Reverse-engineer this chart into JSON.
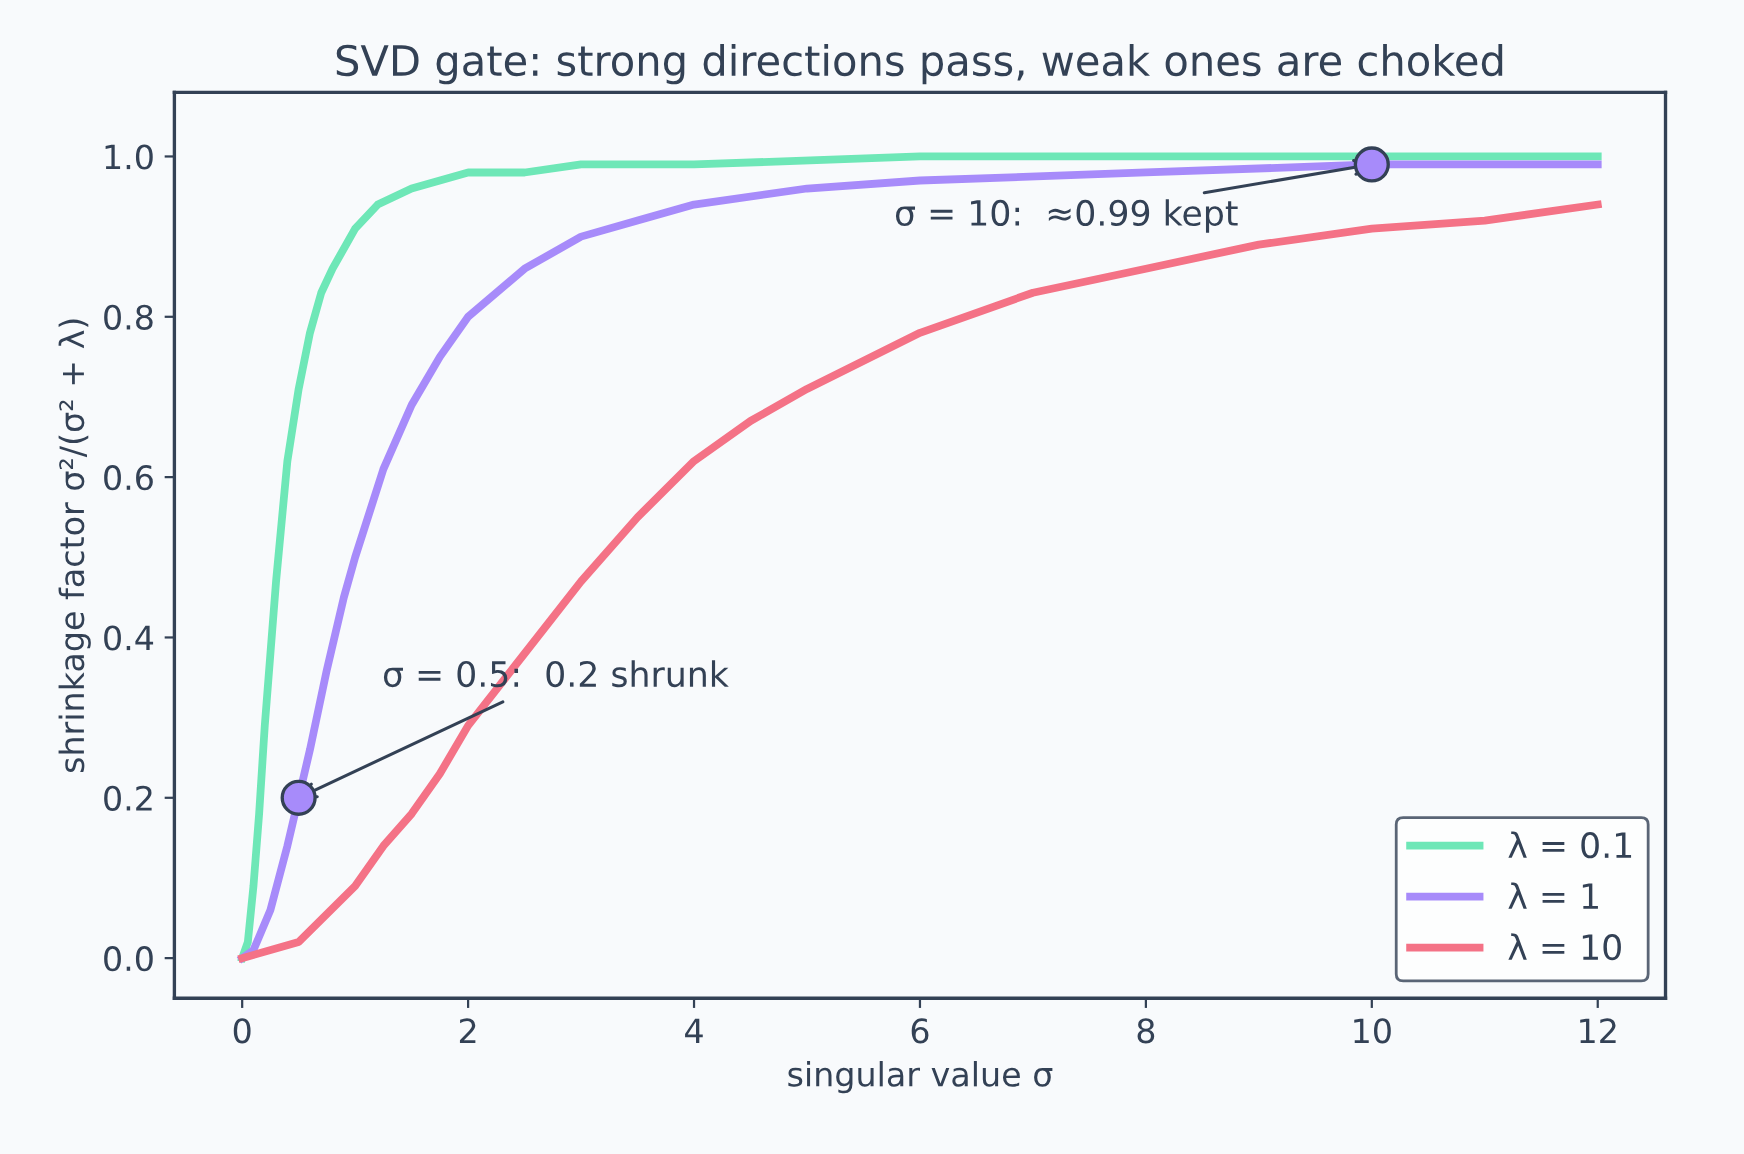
{
  "chart_data": {
    "type": "line",
    "title": "SVD gate: strong directions pass, weak ones are choked",
    "xlabel": "singular value σ",
    "ylabel": "shrinkage factor σ²/(σ² + λ)",
    "xlim": [
      -0.6,
      12.6
    ],
    "ylim": [
      -0.05,
      1.08
    ],
    "xticks": [
      0,
      2,
      4,
      6,
      8,
      10,
      12
    ],
    "yticks": [
      {
        "value": 0,
        "label": "0.0"
      },
      {
        "value": 0.2,
        "label": "0.2"
      },
      {
        "value": 0.4,
        "label": "0.4"
      },
      {
        "value": 0.6,
        "label": "0.6"
      },
      {
        "value": 0.8,
        "label": "0.8"
      },
      {
        "value": 1.0,
        "label": "1.0"
      }
    ],
    "grid": false,
    "legend": "bottom right",
    "marker": "none",
    "line_style": "solid",
    "series": [
      {
        "name": "λ = 0.1",
        "color": "#6ee7b7",
        "x": [
          0,
          0.05,
          0.1,
          0.15,
          0.2,
          0.25,
          0.3,
          0.4,
          0.5,
          0.6,
          0.7,
          0.8,
          1,
          1.2,
          1.5,
          2,
          2.5,
          3,
          4,
          6,
          8,
          12
        ],
        "values": [
          0,
          0.02,
          0.09,
          0.18,
          0.29,
          0.38,
          0.47,
          0.62,
          0.71,
          0.78,
          0.83,
          0.86,
          0.91,
          0.94,
          0.96,
          0.98,
          0.98,
          0.99,
          0.99,
          1.0,
          1.0,
          1.0
        ]
      },
      {
        "name": "λ = 1",
        "color": "#a78bfa",
        "x": [
          0,
          0.1,
          0.25,
          0.4,
          0.5,
          0.6,
          0.75,
          0.9,
          1,
          1.25,
          1.5,
          1.75,
          2,
          2.5,
          3,
          3.5,
          4,
          5,
          6,
          8,
          10,
          12
        ],
        "values": [
          0,
          0.01,
          0.06,
          0.14,
          0.2,
          0.26,
          0.36,
          0.45,
          0.5,
          0.61,
          0.69,
          0.75,
          0.8,
          0.86,
          0.9,
          0.92,
          0.94,
          0.96,
          0.97,
          0.98,
          0.99,
          0.99
        ]
      },
      {
        "name": "λ = 10",
        "color": "#f47286",
        "x": [
          0,
          0.5,
          1,
          1.25,
          1.5,
          1.75,
          2,
          2.5,
          3,
          3.5,
          4,
          4.5,
          5,
          6,
          7,
          8,
          9,
          10,
          11,
          12
        ],
        "values": [
          0,
          0.02,
          0.09,
          0.14,
          0.18,
          0.23,
          0.29,
          0.38,
          0.47,
          0.55,
          0.62,
          0.67,
          0.71,
          0.78,
          0.83,
          0.86,
          0.89,
          0.91,
          0.92,
          0.94
        ]
      },
      {
        "type": "scatter",
        "marker": "circle",
        "color": "#a78bfa",
        "x": [
          0.5,
          10
        ],
        "values": [
          0.2,
          0.99
        ]
      }
    ],
    "annotations": [
      {
        "text": "σ = 0.5:  0.2 shrunk",
        "x": 0.5,
        "y": 0.2
      },
      {
        "text": "σ = 10:  ≈0.99 kept",
        "x": 10,
        "y": 0.99
      }
    ]
  }
}
